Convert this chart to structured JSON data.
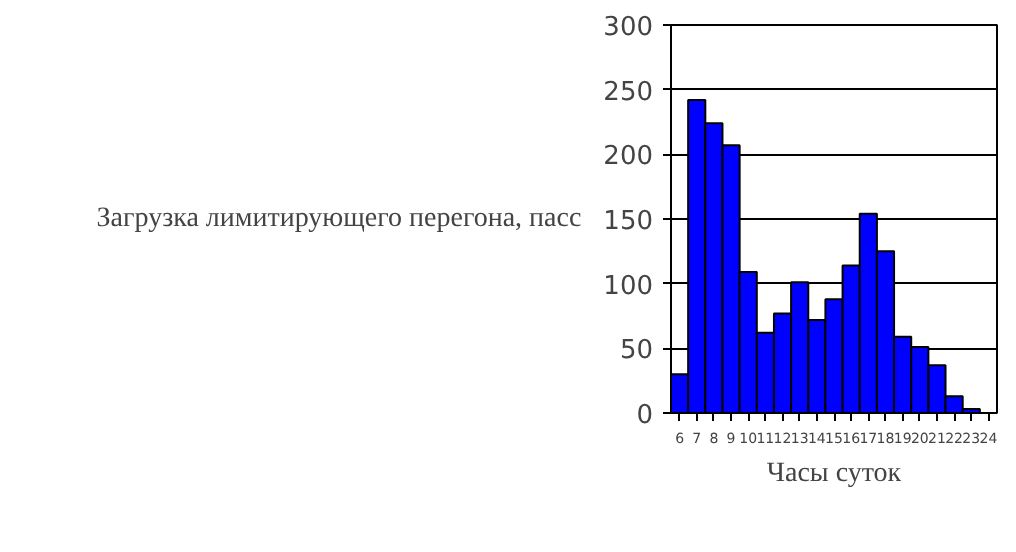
{
  "chart_data": {
    "type": "bar",
    "xlabel": "Часы суток",
    "ylabel": "Загрузка лимитирующего перегона, пасс",
    "categories": [
      "6",
      "7",
      "8",
      "9",
      "10",
      "11",
      "12",
      "13",
      "14",
      "15",
      "16",
      "17",
      "18",
      "19",
      "20",
      "21",
      "22",
      "23",
      "24"
    ],
    "values": [
      30,
      242,
      224,
      207,
      109,
      62,
      77,
      101,
      72,
      88,
      114,
      154,
      125,
      59,
      51,
      37,
      13,
      3,
      null
    ],
    "color": "#0000ff",
    "ylim": [
      0,
      300
    ],
    "yticks": [
      0,
      50,
      100,
      150,
      200,
      250,
      300
    ],
    "grid": "y"
  }
}
